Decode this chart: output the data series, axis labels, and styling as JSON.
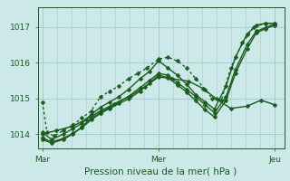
{
  "background_color": "#cce8e8",
  "grid_color": "#a8cccc",
  "line_color": "#1a5c1a",
  "text_color": "#1a5c1a",
  "xlabel": "Pression niveau de la mer( hPa )",
  "xtick_labels": [
    "Mar",
    "Mer",
    "Jeu"
  ],
  "xtick_positions": [
    0.0,
    0.5,
    1.0
  ],
  "ytick_labels": [
    "1014",
    "1015",
    "1016",
    "1017"
  ],
  "ytick_values": [
    1014,
    1015,
    1016,
    1017
  ],
  "ylim": [
    1013.6,
    1017.55
  ],
  "xlim": [
    -0.02,
    1.04
  ],
  "lines": [
    {
      "x": [
        0.0,
        0.02,
        0.05,
        0.09,
        0.13,
        0.17,
        0.21,
        0.25,
        0.29,
        0.33,
        0.37,
        0.41,
        0.45,
        0.5,
        0.54,
        0.58,
        0.62,
        0.66,
        0.7,
        0.73,
        0.77,
        0.81,
        0.86,
        0.91,
        0.96,
        1.0
      ],
      "y": [
        1014.9,
        1014.05,
        1013.95,
        1014.1,
        1014.25,
        1014.45,
        1014.65,
        1015.05,
        1015.2,
        1015.35,
        1015.55,
        1015.7,
        1015.85,
        1016.1,
        1016.15,
        1016.05,
        1015.85,
        1015.55,
        1015.25,
        1015.0,
        1014.95,
        1015.85,
        1016.55,
        1017.0,
        1017.1,
        1017.1
      ],
      "style": "dotted",
      "marker": "D",
      "markersize": 2.5,
      "linewidth": 1.0
    },
    {
      "x": [
        0.0,
        0.04,
        0.09,
        0.13,
        0.17,
        0.21,
        0.25,
        0.29,
        0.33,
        0.37,
        0.42,
        0.46,
        0.5,
        0.54,
        0.58,
        0.62,
        0.66,
        0.7,
        0.74,
        0.79,
        0.83,
        0.88,
        0.92,
        0.96,
        1.0
      ],
      "y": [
        1014.05,
        1013.85,
        1014.0,
        1014.15,
        1014.3,
        1014.55,
        1014.75,
        1014.9,
        1015.05,
        1015.25,
        1015.55,
        1015.75,
        1016.05,
        1015.85,
        1015.65,
        1015.4,
        1015.1,
        1014.9,
        1014.7,
        1015.35,
        1016.15,
        1016.8,
        1017.05,
        1017.1,
        1017.1
      ],
      "style": "solid",
      "marker": "D",
      "markersize": 2.5,
      "linewidth": 1.0
    },
    {
      "x": [
        0.0,
        0.04,
        0.09,
        0.13,
        0.17,
        0.21,
        0.25,
        0.29,
        0.33,
        0.37,
        0.42,
        0.46,
        0.5,
        0.54,
        0.58,
        0.62,
        0.66,
        0.7,
        0.74,
        0.79,
        0.83,
        0.88,
        0.92,
        0.96,
        1.0
      ],
      "y": [
        1013.85,
        1013.75,
        1013.85,
        1014.0,
        1014.2,
        1014.45,
        1014.6,
        1014.75,
        1014.9,
        1015.05,
        1015.3,
        1015.5,
        1015.7,
        1015.65,
        1015.45,
        1015.25,
        1015.05,
        1014.82,
        1014.6,
        1015.05,
        1015.8,
        1016.5,
        1016.88,
        1016.98,
        1017.08
      ],
      "style": "solid",
      "marker": "D",
      "markersize": 2.5,
      "linewidth": 1.0
    },
    {
      "x": [
        0.0,
        0.04,
        0.09,
        0.13,
        0.17,
        0.21,
        0.25,
        0.29,
        0.33,
        0.37,
        0.42,
        0.46,
        0.5,
        0.54,
        0.58,
        0.62,
        0.66,
        0.7,
        0.74,
        0.79,
        0.83,
        0.88,
        0.92,
        0.96,
        1.0
      ],
      "y": [
        1013.9,
        1013.78,
        1013.88,
        1014.02,
        1014.18,
        1014.4,
        1014.58,
        1014.72,
        1014.86,
        1014.98,
        1015.2,
        1015.43,
        1015.65,
        1015.58,
        1015.38,
        1015.18,
        1014.93,
        1014.68,
        1014.48,
        1014.95,
        1015.7,
        1016.38,
        1016.83,
        1016.95,
        1017.05
      ],
      "style": "solid",
      "marker": "D",
      "markersize": 2.5,
      "linewidth": 1.0
    },
    {
      "x": [
        0.0,
        0.06,
        0.13,
        0.19,
        0.25,
        0.31,
        0.38,
        0.44,
        0.5,
        0.56,
        0.63,
        0.69,
        0.75,
        0.81,
        0.88,
        0.94,
        1.0
      ],
      "y": [
        1014.0,
        1014.1,
        1014.22,
        1014.42,
        1014.65,
        1014.85,
        1015.08,
        1015.32,
        1015.6,
        1015.55,
        1015.48,
        1015.28,
        1014.98,
        1014.72,
        1014.78,
        1014.95,
        1014.82
      ],
      "style": "solid",
      "marker": "D",
      "markersize": 2.5,
      "linewidth": 1.0
    }
  ]
}
